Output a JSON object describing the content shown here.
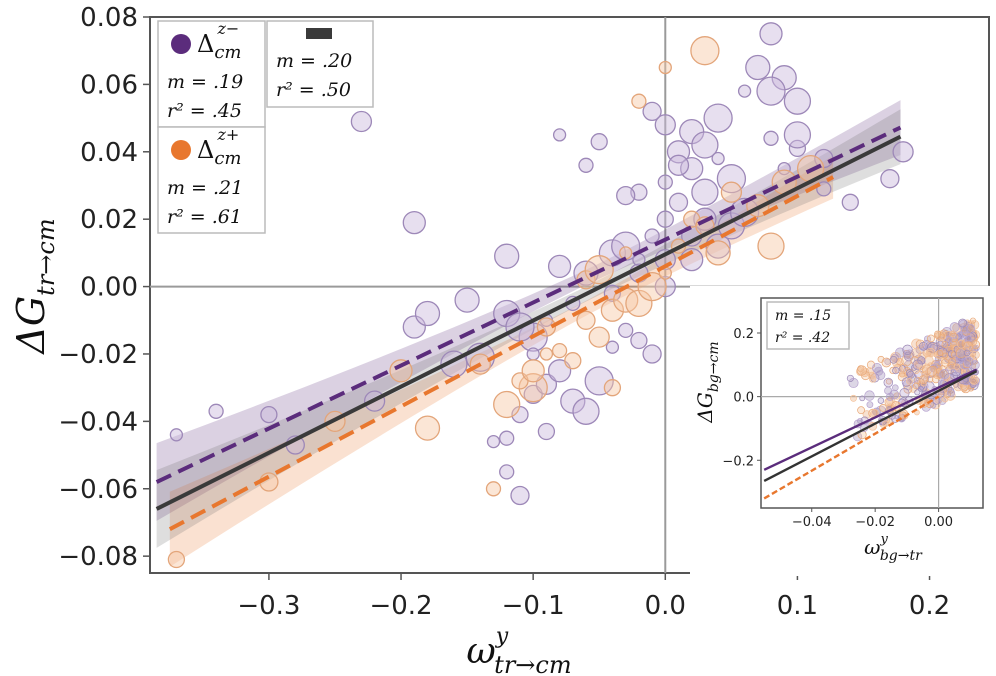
{
  "chart_data": [
    {
      "type": "scatter",
      "title": "",
      "xlabel": {
        "main": "ω",
        "sup": "y",
        "sub": "tr→cm"
      },
      "ylabel": {
        "main": "ΔG",
        "sub": "tr→cm"
      },
      "xlim": [
        -0.39,
        0.245
      ],
      "ylim": [
        -0.085,
        0.08
      ],
      "xticks": [
        -0.3,
        -0.2,
        -0.1,
        0.0,
        0.1,
        0.2
      ],
      "xtick_labels": [
        "−0.3",
        "−0.2",
        "−0.1",
        "0.0",
        "0.1",
        "0.2"
      ],
      "yticks": [
        -0.08,
        -0.06,
        -0.04,
        -0.02,
        0.0,
        0.02,
        0.04,
        0.06,
        0.08
      ],
      "ytick_labels": [
        "−0.08",
        "−0.06",
        "−0.04",
        "−0.02",
        "0.00",
        "0.02",
        "0.04",
        "0.06",
        "0.08"
      ],
      "reference_lines": {
        "x": 0.0,
        "y": 0.0
      },
      "grid": false,
      "series": [
        {
          "name": "Δ_cm^{z−}",
          "color": "#5b2c7c",
          "line_style": "dashed",
          "fit": {
            "x": [
              -0.385,
              0.178
            ],
            "y": [
              -0.058,
              0.0472
            ]
          },
          "stats": {
            "m": "m = .19",
            "r2": "r² = .45"
          },
          "points": [
            [
              -0.37,
              -0.044
            ],
            [
              -0.34,
              -0.037
            ],
            [
              -0.3,
              -0.038
            ],
            [
              -0.28,
              -0.047
            ],
            [
              -0.22,
              -0.034
            ],
            [
              -0.19,
              -0.012
            ],
            [
              -0.18,
              -0.008
            ],
            [
              -0.16,
              -0.023
            ],
            [
              -0.14,
              -0.021
            ],
            [
              -0.13,
              -0.046
            ],
            [
              -0.12,
              -0.045
            ],
            [
              -0.11,
              -0.038
            ],
            [
              -0.1,
              -0.032
            ],
            [
              -0.09,
              -0.029
            ],
            [
              -0.08,
              -0.025
            ],
            [
              -0.07,
              -0.034
            ],
            [
              -0.06,
              -0.037
            ],
            [
              -0.05,
              -0.028
            ],
            [
              -0.04,
              -0.018
            ],
            [
              -0.03,
              -0.013
            ],
            [
              -0.02,
              -0.016
            ],
            [
              -0.01,
              -0.02
            ],
            [
              0.0,
              0.0
            ],
            [
              0.01,
              0.04
            ],
            [
              0.02,
              0.046
            ],
            [
              0.03,
              0.042
            ],
            [
              0.04,
              0.05
            ],
            [
              0.06,
              0.058
            ],
            [
              0.08,
              0.044
            ],
            [
              0.1,
              0.041
            ],
            [
              0.12,
              0.038
            ],
            [
              0.18,
              0.04
            ],
            [
              -0.08,
              0.006
            ],
            [
              -0.06,
              0.004
            ],
            [
              -0.04,
              0.01
            ],
            [
              -0.03,
              0.012
            ],
            [
              -0.02,
              0.008
            ],
            [
              -0.01,
              0.015
            ],
            [
              0.0,
              0.02
            ],
            [
              0.01,
              0.025
            ],
            [
              0.02,
              0.015
            ],
            [
              0.03,
              0.02
            ],
            [
              0.04,
              0.012
            ],
            [
              0.05,
              0.018
            ],
            [
              0.06,
              0.022
            ],
            [
              -0.08,
              0.045
            ],
            [
              -0.06,
              0.036
            ],
            [
              -0.05,
              0.043
            ],
            [
              -0.01,
              0.052
            ],
            [
              0.0,
              0.048
            ],
            [
              0.02,
              0.035
            ],
            [
              0.07,
              0.065
            ],
            [
              0.1,
              0.055
            ],
            [
              -0.1,
              -0.015
            ],
            [
              -0.09,
              -0.01
            ],
            [
              -0.07,
              -0.005
            ],
            [
              -0.04,
              -0.002
            ],
            [
              -0.02,
              0.004
            ],
            [
              0.0,
              0.008
            ],
            [
              0.02,
              0.008
            ],
            [
              -0.15,
              -0.004
            ],
            [
              -0.12,
              -0.008
            ],
            [
              -0.11,
              -0.012
            ],
            [
              -0.1,
              -0.02
            ],
            [
              -0.12,
              -0.055
            ],
            [
              -0.09,
              -0.043
            ],
            [
              -0.11,
              -0.062
            ],
            [
              -0.23,
              0.049
            ],
            [
              -0.19,
              0.019
            ],
            [
              -0.12,
              0.009
            ],
            [
              0.03,
              0.028
            ],
            [
              0.05,
              0.032
            ],
            [
              0.04,
              0.038
            ],
            [
              0.0,
              0.031
            ],
            [
              -0.02,
              0.028
            ],
            [
              -0.03,
              0.027
            ],
            [
              0.01,
              0.036
            ],
            [
              0.08,
              0.075
            ],
            [
              0.09,
              0.062
            ],
            [
              0.1,
              0.045
            ],
            [
              0.08,
              0.058
            ],
            [
              0.09,
              0.035
            ],
            [
              0.12,
              0.029
            ],
            [
              0.14,
              0.025
            ],
            [
              0.17,
              0.032
            ]
          ]
        },
        {
          "name": "Δ_cm^{z+}",
          "color": "#e8772e",
          "line_style": "dashed",
          "fit": {
            "x": [
              -0.375,
              0.127
            ],
            "y": [
              -0.072,
              0.0325
            ]
          },
          "stats": {
            "m": "m = .21",
            "r2": "r² = .61"
          },
          "points": [
            [
              -0.37,
              -0.081
            ],
            [
              -0.3,
              -0.058
            ],
            [
              -0.25,
              -0.04
            ],
            [
              -0.2,
              -0.025
            ],
            [
              -0.18,
              -0.042
            ],
            [
              -0.12,
              -0.035
            ],
            [
              -0.1,
              -0.03
            ],
            [
              -0.09,
              -0.02
            ],
            [
              -0.08,
              -0.019
            ],
            [
              -0.07,
              -0.022
            ],
            [
              -0.06,
              -0.01
            ],
            [
              -0.05,
              -0.015
            ],
            [
              -0.04,
              -0.007
            ],
            [
              -0.03,
              -0.004
            ],
            [
              -0.02,
              -0.005
            ],
            [
              -0.01,
              0.0
            ],
            [
              0.0,
              0.004
            ],
            [
              0.01,
              0.012
            ],
            [
              0.02,
              0.02
            ],
            [
              0.03,
              0.018
            ],
            [
              0.05,
              0.028
            ],
            [
              0.07,
              0.024
            ],
            [
              0.09,
              0.031
            ],
            [
              0.11,
              0.035
            ],
            [
              0.03,
              0.07
            ],
            [
              0.0,
              0.065
            ],
            [
              -0.02,
              0.055
            ],
            [
              -0.11,
              -0.028
            ],
            [
              -0.06,
              0.002
            ],
            [
              -0.14,
              -0.023
            ],
            [
              -0.1,
              -0.025
            ],
            [
              0.04,
              0.01
            ],
            [
              0.08,
              0.012
            ],
            [
              -0.05,
              0.005
            ],
            [
              -0.03,
              0.01
            ],
            [
              -0.13,
              -0.06
            ],
            [
              -0.04,
              -0.03
            ],
            [
              -0.09,
              -0.012
            ]
          ]
        }
      ],
      "combined_fit": {
        "color": "#3a3a3a",
        "line_style": "solid",
        "fit": {
          "x": [
            -0.385,
            0.178
          ],
          "y": [
            -0.066,
            0.0445
          ]
        },
        "stats": {
          "m": "m = .20",
          "r2": "r² = .50"
        }
      },
      "legend_placement": "top-left"
    },
    {
      "type": "scatter",
      "title": "",
      "placement": "bottom-right inset",
      "xlabel": {
        "main": "ω",
        "sup": "y",
        "sub": "bg→tr"
      },
      "ylabel": {
        "main": "ΔG",
        "sub": "bg→cm"
      },
      "xlim": [
        -0.056,
        0.014
      ],
      "ylim": [
        -0.35,
        0.31
      ],
      "xticks": [
        -0.04,
        -0.02,
        0.0
      ],
      "xtick_labels": [
        "−0.04",
        "−0.02",
        "0.00"
      ],
      "yticks": [
        -0.2,
        0.0,
        0.2
      ],
      "ytick_labels": [
        "−0.2",
        "0.0",
        "0.2"
      ],
      "reference_lines": {
        "x": 0.0,
        "y": 0.0
      },
      "stats": {
        "m": "m = .15",
        "r2": "r² = .42"
      },
      "fits": [
        {
          "color": "#5b2c7c",
          "line_style": "solid",
          "x": [
            -0.055,
            0.012
          ],
          "y": [
            -0.23,
            0.085
          ]
        },
        {
          "color": "#333333",
          "line_style": "solid",
          "x": [
            -0.055,
            0.012
          ],
          "y": [
            -0.265,
            0.08
          ]
        },
        {
          "color": "#e8772e",
          "line_style": "dashed",
          "x": [
            -0.055,
            0.0
          ],
          "y": [
            -0.32,
            0.0
          ]
        }
      ]
    }
  ]
}
